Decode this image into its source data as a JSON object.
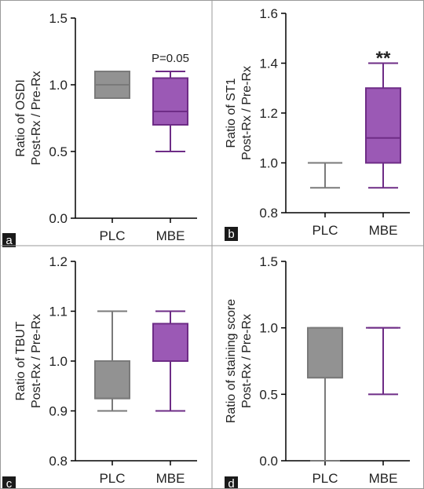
{
  "colors": {
    "plc_fill": "#929292",
    "plc_edge": "#7a7a7a",
    "mbe_fill": "#9b59b5",
    "mbe_edge": "#6e2c86",
    "axis": "#000000",
    "label_bg": "#1a1a1a",
    "label_fg": "#ffffff"
  },
  "chart_data": [
    {
      "panel": "a",
      "type": "box",
      "ylabel_lines": [
        "Ratio of OSDI",
        "Post-Rx / Pre-Rx"
      ],
      "ylim": [
        0.0,
        1.5
      ],
      "yticks": [
        "0.0",
        "0.5",
        "1.0",
        "1.5"
      ],
      "categories": [
        "PLC",
        "MBE"
      ],
      "boxes": [
        {
          "category": "PLC",
          "min": 0.9,
          "q1": 0.9,
          "median": 1.0,
          "q3": 1.1,
          "max": 1.1
        },
        {
          "category": "MBE",
          "min": 0.5,
          "q1": 0.7,
          "median": 0.8,
          "q3": 1.05,
          "max": 1.1
        }
      ],
      "annotation": {
        "text": "P=0.05",
        "category": "MBE",
        "y": 1.17
      }
    },
    {
      "panel": "b",
      "type": "box",
      "ylabel_lines": [
        "Ratio of ST1",
        "Post-Rx / Pre-Rx"
      ],
      "ylim": [
        0.8,
        1.6
      ],
      "yticks": [
        "0.8",
        "1.0",
        "1.2",
        "1.4",
        "1.6"
      ],
      "categories": [
        "PLC",
        "MBE"
      ],
      "boxes": [
        {
          "category": "PLC",
          "min": 0.9,
          "q1": 1.0,
          "median": 1.0,
          "q3": 1.0,
          "max": 1.0
        },
        {
          "category": "MBE",
          "min": 0.9,
          "q1": 1.0,
          "median": 1.1,
          "q3": 1.3,
          "max": 1.4
        }
      ],
      "annotation": {
        "text": "**",
        "category": "MBE",
        "y": 1.44
      }
    },
    {
      "panel": "c",
      "type": "box",
      "ylabel_lines": [
        "Ratio of TBUT",
        "Post-Rx / Pre-Rx"
      ],
      "ylim": [
        0.8,
        1.2
      ],
      "yticks": [
        "0.8",
        "0.9",
        "1.0",
        "1.1",
        "1.2"
      ],
      "categories": [
        "PLC",
        "MBE"
      ],
      "boxes": [
        {
          "category": "PLC",
          "min": 0.9,
          "q1": 0.925,
          "median": 0.925,
          "q3": 1.0,
          "max": 1.1
        },
        {
          "category": "MBE",
          "min": 0.9,
          "q1": 1.0,
          "median": 1.0,
          "q3": 1.075,
          "max": 1.1
        }
      ],
      "annotation": null
    },
    {
      "panel": "d",
      "type": "box",
      "ylabel_lines": [
        "Ratio of staining score",
        "Post-Rx / Pre-Rx"
      ],
      "ylim": [
        0.0,
        1.5
      ],
      "yticks": [
        "0.0",
        "0.5",
        "1.0",
        "1.5"
      ],
      "categories": [
        "PLC",
        "MBE"
      ],
      "boxes": [
        {
          "category": "PLC",
          "min": 0.0,
          "q1": 0.625,
          "median": 0.625,
          "q3": 1.0,
          "max": 1.0
        },
        {
          "category": "MBE",
          "min": 0.5,
          "q1": 1.0,
          "median": 1.0,
          "q3": 1.0,
          "max": 1.0
        }
      ],
      "annotation": null
    }
  ]
}
